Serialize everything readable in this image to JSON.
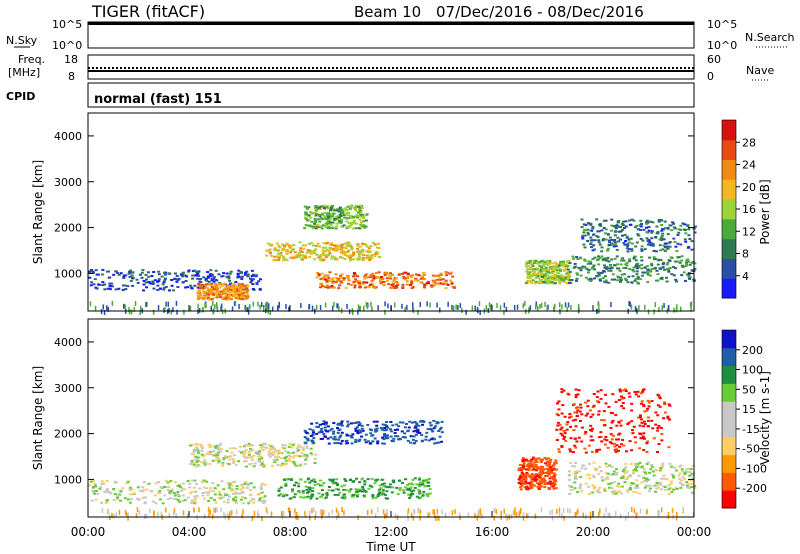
{
  "header": {
    "station": "TIGER (fitACF)",
    "beam_label": "Beam 10",
    "date_range": "07/Dec/2016 - 08/Dec/2016"
  },
  "top_panels": {
    "nsky_label": "N.Sky",
    "nsky_ticks": [
      "10^5",
      "10^0"
    ],
    "nsearch_label": "N.Search",
    "nsearch_ticks": [
      "10^5",
      "10^0"
    ],
    "freq_label_line1": "Freq.",
    "freq_label_line2": "[MHz]",
    "freq_ticks": [
      "18",
      "8"
    ],
    "nave_label": "Nave",
    "nave_ticks": [
      "60",
      "0"
    ],
    "cpid_label": "CPID",
    "cpid_value": "normal (fast) 151"
  },
  "colors": {
    "power": [
      "#1a1aff",
      "#2a4fa8",
      "#2f7a52",
      "#4caa3c",
      "#9cd437",
      "#f2b81c",
      "#f28a0f",
      "#e84a12",
      "#d81010"
    ],
    "velocity": [
      "#ff0000",
      "#ff5a00",
      "#ff9a00",
      "#ffcc66",
      "#c8c8c8",
      "#c8c8c8",
      "#66cc33",
      "#1f8f3f",
      "#1f5fa8",
      "#1111cc"
    ]
  },
  "chart_data": [
    {
      "type": "heatmap",
      "panel": "power",
      "xlabel": "",
      "ylabel": "Slant Range [km]",
      "ylim": [
        180,
        4500
      ],
      "xlim_hours": [
        0,
        24
      ],
      "yticks": [
        1000,
        2000,
        3000,
        4000
      ],
      "colorbar_label": "Power [dB]",
      "colorbar_ticks": [
        "28",
        "24",
        "20",
        "16",
        "12",
        "8",
        "4"
      ],
      "colorbar_range": [
        0,
        30
      ],
      "regions": [
        {
          "t0": 0.0,
          "t1": 6.8,
          "r0": 650,
          "r1": 1100,
          "level": 5,
          "note": "blue band"
        },
        {
          "t0": 4.3,
          "t1": 6.3,
          "r0": 450,
          "r1": 800,
          "level": 24
        },
        {
          "t0": 7.0,
          "t1": 11.5,
          "r0": 1300,
          "r1": 1700,
          "level": 20
        },
        {
          "t0": 9.0,
          "t1": 14.5,
          "r0": 700,
          "r1": 1050,
          "level": 26
        },
        {
          "t0": 8.5,
          "t1": 11.0,
          "r0": 2000,
          "r1": 2500,
          "level": 14
        },
        {
          "t0": 17.3,
          "t1": 19.0,
          "r0": 800,
          "r1": 1300,
          "level": 16
        },
        {
          "t0": 19.0,
          "t1": 24.0,
          "r0": 800,
          "r1": 1400,
          "level": 10
        },
        {
          "t0": 19.5,
          "t1": 24.0,
          "r0": 1500,
          "r1": 2200,
          "level": 8
        }
      ]
    },
    {
      "type": "heatmap",
      "panel": "velocity",
      "xlabel": "Time UT",
      "ylabel": "Slant Range [km]",
      "ylim": [
        180,
        4500
      ],
      "xlim_hours": [
        0,
        24
      ],
      "yticks": [
        1000,
        2000,
        3000,
        4000
      ],
      "xticks": [
        "00:00",
        "04:00",
        "08:00",
        "12:00",
        "16:00",
        "20:00",
        "00:00"
      ],
      "colorbar_label": "Velocity [m s-1]",
      "colorbar_ticks": [
        "200",
        "100",
        "50",
        "15",
        "-15",
        "-50",
        "-100",
        "-200"
      ],
      "colorbar_range": [
        -250,
        250
      ],
      "regions": [
        {
          "t0": 0.0,
          "t1": 7.0,
          "r0": 500,
          "r1": 1000,
          "value": 0
        },
        {
          "t0": 4.0,
          "t1": 9.0,
          "r0": 1300,
          "r1": 1800,
          "value": 0
        },
        {
          "t0": 7.5,
          "t1": 13.5,
          "r0": 600,
          "r1": 1050,
          "value": 60
        },
        {
          "t0": 8.5,
          "t1": 14.0,
          "r0": 1800,
          "r1": 2300,
          "value": 180
        },
        {
          "t0": 17.0,
          "t1": 18.5,
          "r0": 800,
          "r1": 1500,
          "value": -180
        },
        {
          "t0": 18.5,
          "t1": 23.0,
          "r0": 1600,
          "r1": 3000,
          "value": -220
        },
        {
          "t0": 19.0,
          "t1": 24.0,
          "r0": 700,
          "r1": 1400,
          "value": 0
        }
      ]
    }
  ]
}
